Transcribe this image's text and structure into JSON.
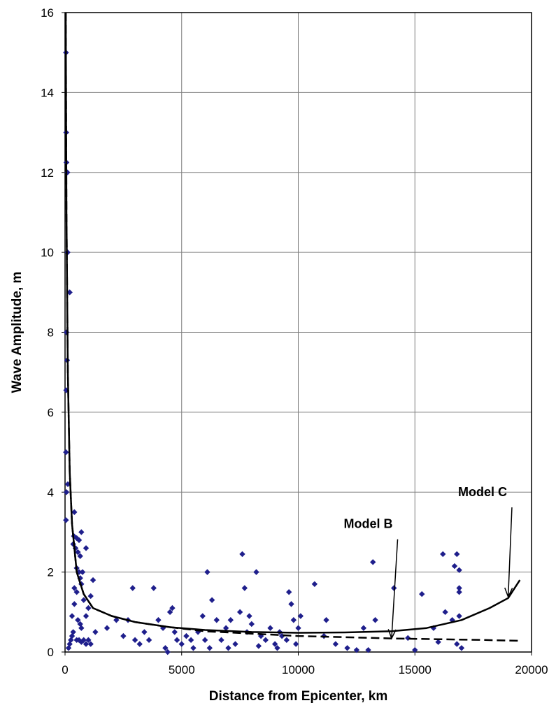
{
  "chart_data": {
    "type": "scatter",
    "title": "",
    "xlabel": "Distance from Epicenter, km",
    "ylabel": "Wave Amplitude, m",
    "xlim": [
      0,
      20000
    ],
    "ylim": [
      0,
      16
    ],
    "x_ticks": [
      0,
      5000,
      10000,
      15000,
      20000
    ],
    "y_ticks": [
      0,
      2,
      4,
      6,
      8,
      10,
      12,
      14,
      16
    ],
    "grid": true,
    "legend": "none",
    "colors": {
      "points": "#1f1f8c",
      "lines": "#000000",
      "grid": "#7f7f7f"
    },
    "series": [
      {
        "type": "scatter",
        "points": [
          [
            40,
            15.0
          ],
          [
            50,
            13.0
          ],
          [
            60,
            12.25
          ],
          [
            100,
            12.0
          ],
          [
            110,
            10.0
          ],
          [
            200,
            9.0
          ],
          [
            60,
            8.0
          ],
          [
            90,
            7.3
          ],
          [
            50,
            6.55
          ],
          [
            40,
            5.0
          ],
          [
            120,
            4.2
          ],
          [
            60,
            4.0
          ],
          [
            40,
            3.3
          ],
          [
            400,
            3.5
          ],
          [
            380,
            2.9
          ],
          [
            500,
            2.85
          ],
          [
            450,
            2.6
          ],
          [
            600,
            2.8
          ],
          [
            700,
            3.0
          ],
          [
            550,
            2.5
          ],
          [
            650,
            2.4
          ],
          [
            350,
            2.7
          ],
          [
            900,
            2.6
          ],
          [
            500,
            2.1
          ],
          [
            600,
            2.0
          ],
          [
            750,
            2.0
          ],
          [
            650,
            1.85
          ],
          [
            700,
            1.7
          ],
          [
            400,
            1.6
          ],
          [
            500,
            1.5
          ],
          [
            800,
            1.3
          ],
          [
            1200,
            1.8
          ],
          [
            1100,
            1.4
          ],
          [
            1000,
            1.1
          ],
          [
            900,
            0.9
          ],
          [
            400,
            1.2
          ],
          [
            300,
            0.9
          ],
          [
            550,
            0.8
          ],
          [
            650,
            0.7
          ],
          [
            700,
            0.6
          ],
          [
            350,
            0.5
          ],
          [
            300,
            0.4
          ],
          [
            250,
            0.3
          ],
          [
            200,
            0.2
          ],
          [
            150,
            0.1
          ],
          [
            500,
            0.3
          ],
          [
            600,
            0.3
          ],
          [
            700,
            0.25
          ],
          [
            800,
            0.3
          ],
          [
            900,
            0.2
          ],
          [
            1000,
            0.3
          ],
          [
            1100,
            0.2
          ],
          [
            1300,
            0.5
          ],
          [
            1800,
            0.6
          ],
          [
            2200,
            0.8
          ],
          [
            2500,
            0.4
          ],
          [
            2700,
            0.8
          ],
          [
            2900,
            1.6
          ],
          [
            3000,
            0.3
          ],
          [
            3200,
            0.2
          ],
          [
            3400,
            0.5
          ],
          [
            3600,
            0.3
          ],
          [
            3800,
            1.6
          ],
          [
            4000,
            0.8
          ],
          [
            4200,
            0.6
          ],
          [
            4300,
            0.1
          ],
          [
            4400,
            0.0
          ],
          [
            4500,
            1.0
          ],
          [
            4600,
            1.1
          ],
          [
            4700,
            0.5
          ],
          [
            4800,
            0.3
          ],
          [
            5000,
            0.2
          ],
          [
            5200,
            0.4
          ],
          [
            5400,
            0.3
          ],
          [
            5500,
            0.1
          ],
          [
            5700,
            0.5
          ],
          [
            5900,
            0.9
          ],
          [
            6000,
            0.3
          ],
          [
            6100,
            2.0
          ],
          [
            6300,
            1.3
          ],
          [
            6500,
            0.8
          ],
          [
            6700,
            0.3
          ],
          [
            6900,
            0.6
          ],
          [
            7100,
            0.8
          ],
          [
            7300,
            0.2
          ],
          [
            7500,
            1.0
          ],
          [
            7600,
            2.45
          ],
          [
            7700,
            1.6
          ],
          [
            7800,
            0.5
          ],
          [
            7900,
            0.9
          ],
          [
            8000,
            0.7
          ],
          [
            8200,
            2.0
          ],
          [
            8400,
            0.4
          ],
          [
            8600,
            0.3
          ],
          [
            8800,
            0.6
          ],
          [
            9000,
            0.2
          ],
          [
            9200,
            0.5
          ],
          [
            9300,
            0.4
          ],
          [
            9500,
            0.3
          ],
          [
            9600,
            1.5
          ],
          [
            9700,
            1.2
          ],
          [
            9800,
            0.8
          ],
          [
            9900,
            0.2
          ],
          [
            10000,
            0.6
          ],
          [
            10100,
            0.9
          ],
          [
            6200,
            0.1
          ],
          [
            7000,
            0.1
          ],
          [
            8300,
            0.15
          ],
          [
            9100,
            0.1
          ],
          [
            10700,
            1.7
          ],
          [
            11100,
            0.4
          ],
          [
            11200,
            0.8
          ],
          [
            11600,
            0.2
          ],
          [
            12100,
            0.1
          ],
          [
            12500,
            0.05
          ],
          [
            12800,
            0.6
          ],
          [
            13000,
            0.05
          ],
          [
            13200,
            2.25
          ],
          [
            13300,
            0.8
          ],
          [
            14100,
            1.6
          ],
          [
            14700,
            0.35
          ],
          [
            15000,
            0.05
          ],
          [
            15300,
            1.45
          ],
          [
            15800,
            0.6
          ],
          [
            16000,
            0.25
          ],
          [
            16200,
            2.45
          ],
          [
            16300,
            1.0
          ],
          [
            16600,
            0.8
          ],
          [
            16700,
            2.15
          ],
          [
            16800,
            2.45
          ],
          [
            16900,
            2.05
          ],
          [
            16900,
            1.6
          ],
          [
            16900,
            1.5
          ],
          [
            16900,
            0.9
          ],
          [
            16800,
            0.2
          ],
          [
            17000,
            0.1
          ]
        ]
      },
      {
        "type": "line",
        "style": "dashed",
        "points": [
          [
            30,
            16.0
          ],
          [
            60,
            11.0
          ],
          [
            120,
            7.0
          ],
          [
            200,
            4.5
          ],
          [
            300,
            3.2
          ],
          [
            500,
            2.0
          ],
          [
            800,
            1.45
          ],
          [
            1200,
            1.1
          ],
          [
            2000,
            0.9
          ],
          [
            3000,
            0.75
          ],
          [
            4500,
            0.62
          ],
          [
            6000,
            0.52
          ],
          [
            8000,
            0.46
          ],
          [
            10000,
            0.4
          ],
          [
            12000,
            0.37
          ],
          [
            14000,
            0.34
          ],
          [
            16000,
            0.32
          ],
          [
            18000,
            0.3
          ],
          [
            19500,
            0.28
          ]
        ]
      },
      {
        "type": "line",
        "style": "solid",
        "points": [
          [
            30,
            16.0
          ],
          [
            60,
            11.0
          ],
          [
            120,
            7.0
          ],
          [
            200,
            4.5
          ],
          [
            300,
            3.2
          ],
          [
            500,
            2.0
          ],
          [
            800,
            1.45
          ],
          [
            1200,
            1.1
          ],
          [
            2000,
            0.9
          ],
          [
            3000,
            0.75
          ],
          [
            4500,
            0.62
          ],
          [
            6000,
            0.55
          ],
          [
            8000,
            0.5
          ],
          [
            10000,
            0.48
          ],
          [
            12000,
            0.49
          ],
          [
            14000,
            0.52
          ],
          [
            15500,
            0.6
          ],
          [
            17000,
            0.8
          ],
          [
            18200,
            1.1
          ],
          [
            19000,
            1.35
          ],
          [
            19500,
            1.8
          ]
        ]
      }
    ],
    "annotations": [
      {
        "text": "Model B",
        "x": 13000,
        "y": 3.1,
        "arrow_to": [
          14000,
          0.34
        ]
      },
      {
        "text": "Model C",
        "x": 17900,
        "y": 3.9,
        "arrow_to": [
          19000,
          1.38
        ]
      }
    ]
  }
}
